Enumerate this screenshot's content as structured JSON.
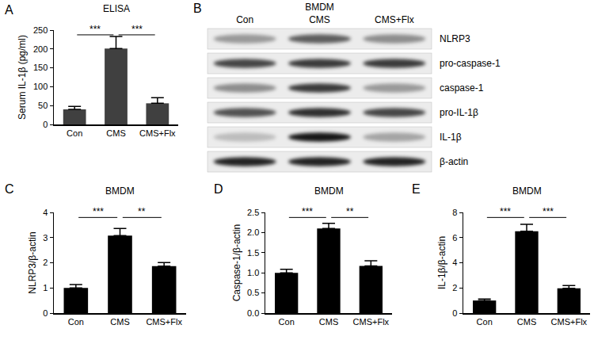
{
  "chart_data": [
    {
      "label": "A",
      "type": "bar",
      "title": "ELISA",
      "ylabel": "Serum IL-1β (pg/ml)",
      "categories": [
        "Con",
        "CMS",
        "CMS+Flx"
      ],
      "values": [
        40,
        201,
        56
      ],
      "errors": [
        8,
        32,
        15
      ],
      "color": "#404040",
      "ylim": [
        0,
        250
      ],
      "yticks": [
        0,
        50,
        100,
        150,
        200,
        250
      ],
      "grid": false,
      "significance": [
        {
          "from": "Con",
          "to": "CMS",
          "text": "***"
        },
        {
          "from": "CMS",
          "to": "CMS+Flx",
          "text": "***"
        }
      ]
    },
    {
      "label": "C",
      "type": "bar",
      "title": "BMDM",
      "ylabel": "NLRP3/β-actin",
      "categories": [
        "Con",
        "CMS",
        "CMS+Flx"
      ],
      "values": [
        1.0,
        3.08,
        1.87
      ],
      "errors": [
        0.13,
        0.28,
        0.14
      ],
      "color": "#000000",
      "ylim": [
        0,
        4
      ],
      "yticks": [
        0,
        1,
        2,
        3,
        4
      ],
      "grid": false,
      "significance": [
        {
          "from": "Con",
          "to": "CMS",
          "text": "***"
        },
        {
          "from": "CMS",
          "to": "CMS+Flx",
          "text": "**"
        }
      ]
    },
    {
      "label": "D",
      "type": "bar",
      "title": "BMDM",
      "ylabel": "Caspase-1/β-actin",
      "categories": [
        "Con",
        "CMS",
        "CMS+Flx"
      ],
      "values": [
        1.0,
        2.1,
        1.17
      ],
      "errors": [
        0.09,
        0.13,
        0.13
      ],
      "color": "#000000",
      "ylim": [
        0,
        2.5
      ],
      "yticks": [
        {
          "value": 0,
          "label": "0.0"
        },
        0.5,
        {
          "value": 1,
          "label": "1.0"
        },
        1.5,
        {
          "value": 2,
          "label": "2.0"
        },
        2.5
      ],
      "grid": false,
      "significance": [
        {
          "from": "Con",
          "to": "CMS",
          "text": "***"
        },
        {
          "from": "CMS",
          "to": "CMS+Flx",
          "text": "**"
        }
      ]
    },
    {
      "label": "E",
      "type": "bar",
      "title": "BMDM",
      "ylabel": "IL-1β/β-actin",
      "categories": [
        "Con",
        "CMS",
        "CMS+Flx"
      ],
      "values": [
        1.0,
        6.5,
        1.97
      ],
      "errors": [
        0.12,
        0.55,
        0.22
      ],
      "color": "#000000",
      "ylim": [
        0,
        8
      ],
      "yticks": [
        0,
        2,
        4,
        6,
        8
      ],
      "grid": false,
      "significance": [
        {
          "from": "Con",
          "to": "CMS",
          "text": "***"
        },
        {
          "from": "CMS",
          "to": "CMS+Flx",
          "text": "***"
        }
      ]
    }
  ],
  "blot": {
    "label": "B",
    "title": "BMDM",
    "lanes": [
      "Con",
      "CMS",
      "CMS+Flx"
    ],
    "rows": [
      {
        "name": "NLRP3",
        "intensity": [
          0.35,
          0.6,
          0.4
        ]
      },
      {
        "name": "pro-caspase-1",
        "intensity": [
          0.7,
          0.75,
          0.75
        ]
      },
      {
        "name": "caspase-1",
        "intensity": [
          0.4,
          0.75,
          0.35
        ]
      },
      {
        "name": "pro-IL-1β",
        "intensity": [
          0.65,
          0.8,
          0.7
        ]
      },
      {
        "name": "IL-1β",
        "intensity": [
          0.2,
          0.9,
          0.3
        ]
      },
      {
        "name": "β-actin",
        "intensity": [
          0.85,
          0.85,
          0.85
        ]
      }
    ]
  }
}
